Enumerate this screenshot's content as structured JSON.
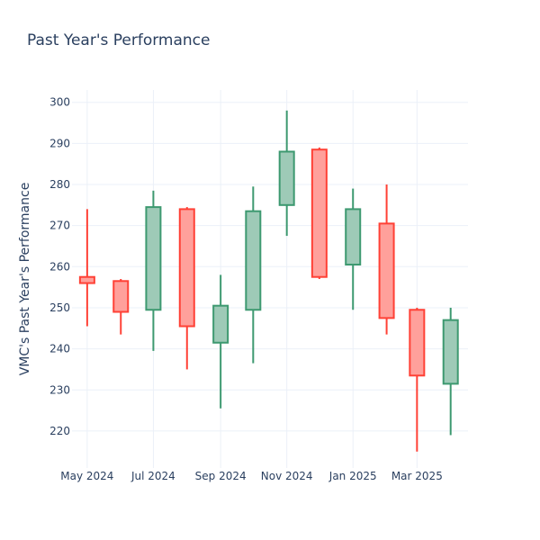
{
  "chart_data": {
    "type": "candlestick",
    "title": "Past Year's Performance",
    "xlabel": "",
    "ylabel": "VMC's Past Year's Performance",
    "ylim": [
      211,
      303
    ],
    "yticks": [
      220,
      230,
      240,
      250,
      260,
      270,
      280,
      290,
      300
    ],
    "xticks": [
      {
        "date": "2024-05-01",
        "label": "May 2024"
      },
      {
        "date": "2024-07-01",
        "label": "Jul 2024"
      },
      {
        "date": "2024-09-01",
        "label": "Sep 2024"
      },
      {
        "date": "2024-11-01",
        "label": "Nov 2024"
      },
      {
        "date": "2025-01-01",
        "label": "Jan 2025"
      },
      {
        "date": "2025-03-01",
        "label": "Mar 2025"
      }
    ],
    "xrange": [
      "2024-04-17",
      "2025-04-17"
    ],
    "grid": true,
    "legend": "none",
    "colors": {
      "increasing_line": "#3d9970",
      "increasing_fill": "#9ecab7",
      "decreasing_line": "#ff4136",
      "decreasing_fill": "#ffa09b",
      "grid": "#ebf0f8",
      "text": "#2a3f5f"
    },
    "candles": [
      {
        "date": "2024-05-01",
        "open": 257.5,
        "high": 274,
        "low": 245.5,
        "close": 256
      },
      {
        "date": "2024-06-01",
        "open": 256.5,
        "high": 257,
        "low": 243.5,
        "close": 249
      },
      {
        "date": "2024-07-01",
        "open": 249.5,
        "high": 278.5,
        "low": 239.5,
        "close": 274.5
      },
      {
        "date": "2024-08-01",
        "open": 274,
        "high": 274.5,
        "low": 235,
        "close": 245.5
      },
      {
        "date": "2024-09-01",
        "open": 241.5,
        "high": 258,
        "low": 225.5,
        "close": 250.5
      },
      {
        "date": "2024-10-01",
        "open": 249.5,
        "high": 279.5,
        "low": 236.5,
        "close": 273.5
      },
      {
        "date": "2024-11-01",
        "open": 275,
        "high": 298,
        "low": 267.5,
        "close": 288
      },
      {
        "date": "2024-12-01",
        "open": 288.5,
        "high": 289,
        "low": 257,
        "close": 257.5
      },
      {
        "date": "2025-01-01",
        "open": 260.5,
        "high": 279,
        "low": 249.5,
        "close": 274
      },
      {
        "date": "2025-02-01",
        "open": 270.5,
        "high": 280,
        "low": 243.5,
        "close": 247.5
      },
      {
        "date": "2025-03-01",
        "open": 249.5,
        "high": 250,
        "low": 215,
        "close": 233.5
      },
      {
        "date": "2025-04-01",
        "open": 231.5,
        "high": 250,
        "low": 219,
        "close": 247
      }
    ]
  }
}
